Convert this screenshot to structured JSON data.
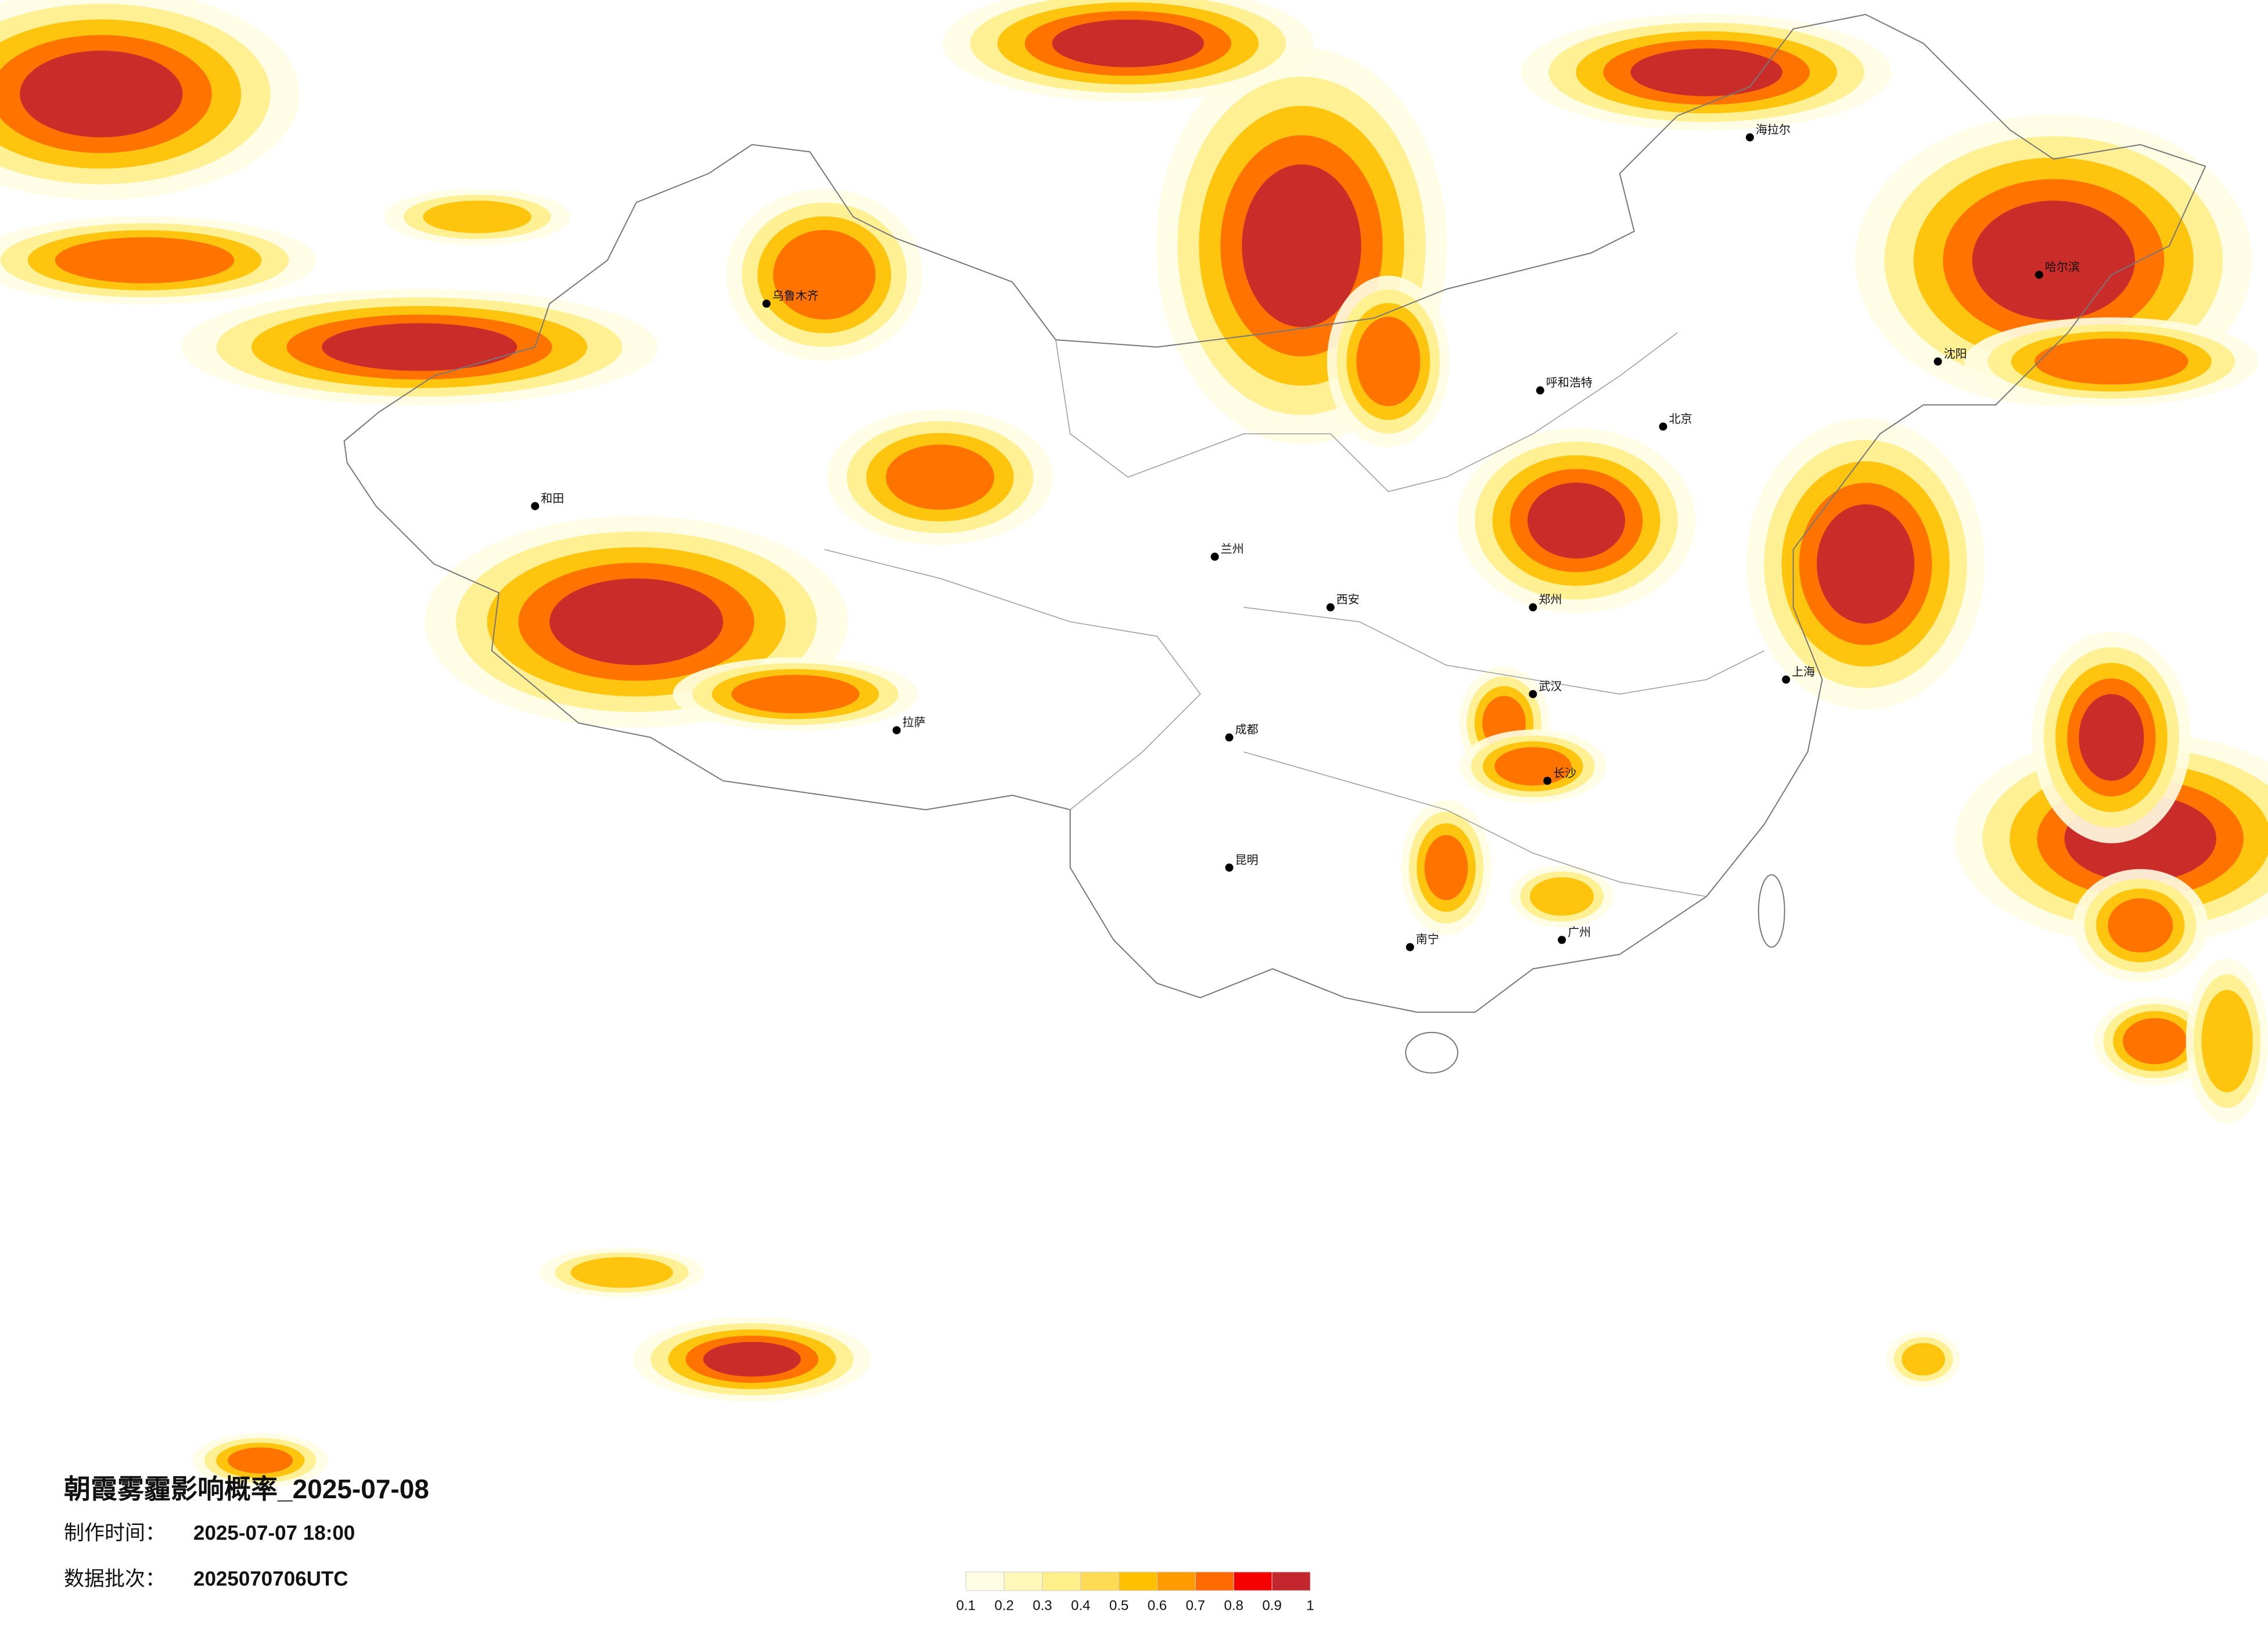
{
  "header": {
    "title": "朝霞雾霾影响概率_2025-07-08",
    "made_label": "制作时间：",
    "made_time": "2025-07-07 18:00",
    "batch_label": "数据批次：",
    "batch": "2025070706UTC"
  },
  "legend": {
    "ticks": [
      0.1,
      0.2,
      0.3,
      0.4,
      0.5,
      0.6,
      0.7,
      0.8,
      0.9,
      1
    ],
    "colors": [
      "#fffde3",
      "#fff8b8",
      "#fff08a",
      "#ffdb55",
      "#ffc000",
      "#ff9a00",
      "#ff6a00",
      "#f40000",
      "#c4262d"
    ]
  },
  "cities": [
    "北京",
    "上海",
    "广州",
    "成都",
    "西安",
    "武汉",
    "哈尔滨",
    "乌鲁木齐",
    "拉萨",
    "昆明",
    "兰州",
    "呼和浩特",
    "沈阳",
    "郑州",
    "长沙",
    "南宁",
    "和田",
    "海拉尔"
  ]
}
